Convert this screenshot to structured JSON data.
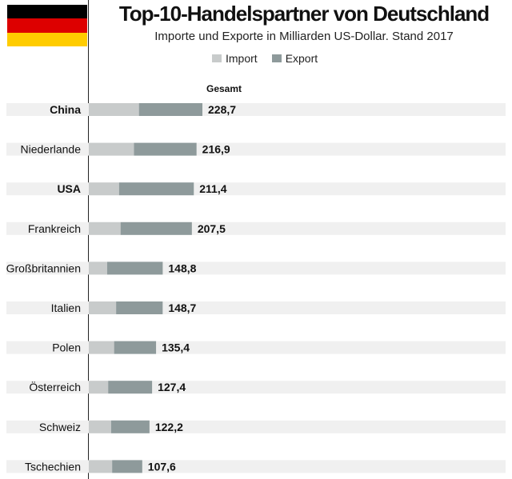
{
  "header": {
    "title": "Top-10-Handelspartner von Deutschland",
    "subtitle": "Importe und Exporte in Milliarden US-Dollar. Stand 2017",
    "flag_colors": [
      "#000000",
      "#dd0000",
      "#ffcc00"
    ]
  },
  "legend": {
    "import_label": "Import",
    "export_label": "Export"
  },
  "total_header": "Gesamt",
  "colors": {
    "import": "#c8cbcb",
    "export": "#8e9a9b",
    "row_band": "#f0f0f0"
  },
  "chart_data": {
    "type": "bar",
    "orientation": "horizontal",
    "stacked": true,
    "categories": [
      "China",
      "Niederlande",
      "USA",
      "Frankreich",
      "Großbritannien",
      "Italien",
      "Polen",
      "Österreich",
      "Schweiz",
      "Tschechien"
    ],
    "series": [
      {
        "name": "Import",
        "values": [
          101.0,
          91.0,
          61.0,
          64.0,
          37.0,
          55.0,
          51.0,
          39.0,
          45.0,
          47.0
        ]
      },
      {
        "name": "Export",
        "values": [
          127.7,
          125.9,
          150.4,
          143.5,
          111.8,
          93.7,
          84.4,
          88.4,
          77.2,
          60.6
        ]
      }
    ],
    "totals": [
      "228,7",
      "216,9",
      "211,4",
      "207,5",
      "148,8",
      "148,7",
      "135,4",
      "127,4",
      "122,2",
      "107,6"
    ],
    "bold_categories": [
      "China",
      "USA"
    ],
    "xlim": [
      0,
      260
    ]
  }
}
